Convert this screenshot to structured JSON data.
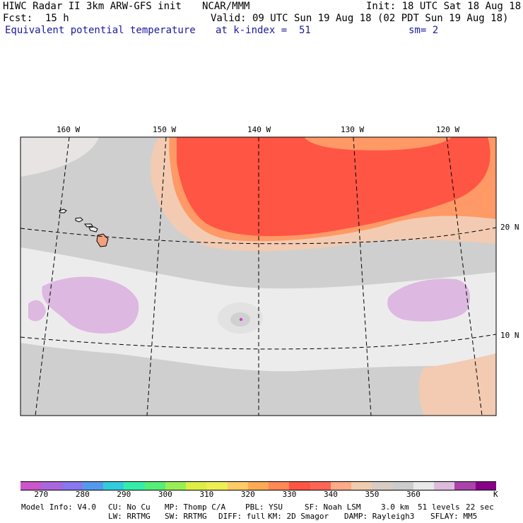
{
  "header": {
    "title": "HIWC Radar II 3km ARW-GFS init",
    "center": "NCAR/MMM",
    "init": "Init: 18 UTC Sat 18 Aug 18",
    "fcst_label": "Fcst:",
    "fcst_value": "15 h",
    "valid": "Valid: 09 UTC Sun 19 Aug 18 (02 PDT Sun 19 Aug 18)",
    "field": "Equivalent potential temperature",
    "level": "at k-index =  51",
    "smooth": "sm= 2"
  },
  "map": {
    "lon_labels": [
      "160 W",
      "150 W",
      "140 W",
      "130 W",
      "120 W"
    ],
    "lat_labels": [
      "20 N",
      "10 N"
    ]
  },
  "colorbar": {
    "colors": [
      "#cc55cc",
      "#aa66dd",
      "#8877ee",
      "#5599ee",
      "#33ccdd",
      "#33eeaa",
      "#55ee77",
      "#99ee55",
      "#ddee44",
      "#eeee55",
      "#ffcc66",
      "#ffaa55",
      "#ff8855",
      "#ff5544",
      "#ff6655",
      "#ffaa88",
      "#f0ccb0",
      "#d8ccc4",
      "#cccccc",
      "#e8e8e8",
      "#ddbbdd",
      "#aa44aa",
      "#880088"
    ],
    "tick_labels": [
      "270",
      "280",
      "290",
      "300",
      "310",
      "320",
      "330",
      "340",
      "350",
      "360"
    ],
    "unit": "K"
  },
  "footer": {
    "row1": [
      "Model Info: V4.0",
      "CU: No Cu",
      "MP: Thomp C/A",
      "PBL: YSU",
      "SF: Noah LSM",
      "3.0 km",
      "51 levels",
      "22 sec"
    ],
    "row2": [
      "LW: RRTMG",
      "SW: RRTMG",
      "DIFF: full",
      "KM: 2D Smagor",
      "DAMP: Rayleigh3",
      "SFLAY: MM5"
    ]
  },
  "colors": {
    "warm_core": "#ff5544",
    "warm_band": "#ff9966",
    "light_salmon": "#f2cbb2",
    "gray": "#cfcfcf",
    "light_gray": "#ececec",
    "lilac": "#ddb8e0",
    "label_blue": "#1a1aa0"
  }
}
